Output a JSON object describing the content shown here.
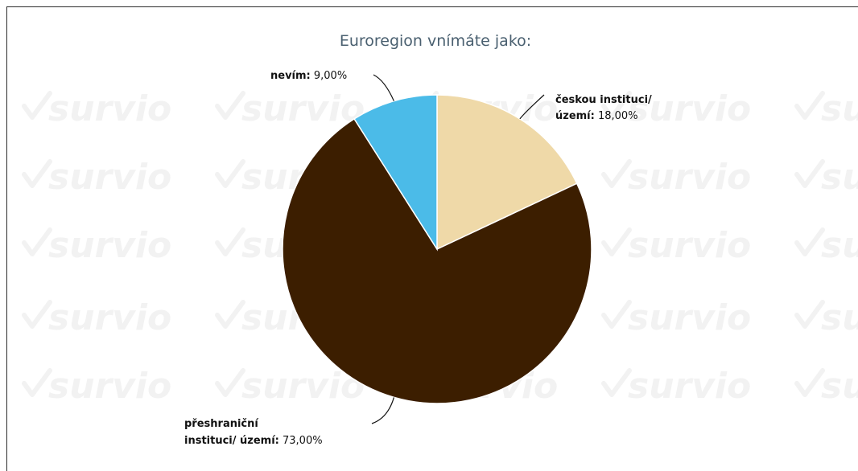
{
  "watermark": "survio",
  "chart_data": {
    "type": "pie",
    "title": "Euroregion vnímáte jako:",
    "slices": [
      {
        "name_lines": [
          "českou instituci/",
          "území:"
        ],
        "value_text": "18,00%",
        "value": 18.0,
        "color": "#efd9a8"
      },
      {
        "name_lines": [
          "přeshraniční",
          "instituci/ území:"
        ],
        "value_text": "73,00%",
        "value": 73.0,
        "color": "#3c1e00"
      },
      {
        "name_lines": [
          "nevím:"
        ],
        "value_text": "9,00%",
        "value": 9.0,
        "color": "#4bbbe8"
      }
    ]
  }
}
